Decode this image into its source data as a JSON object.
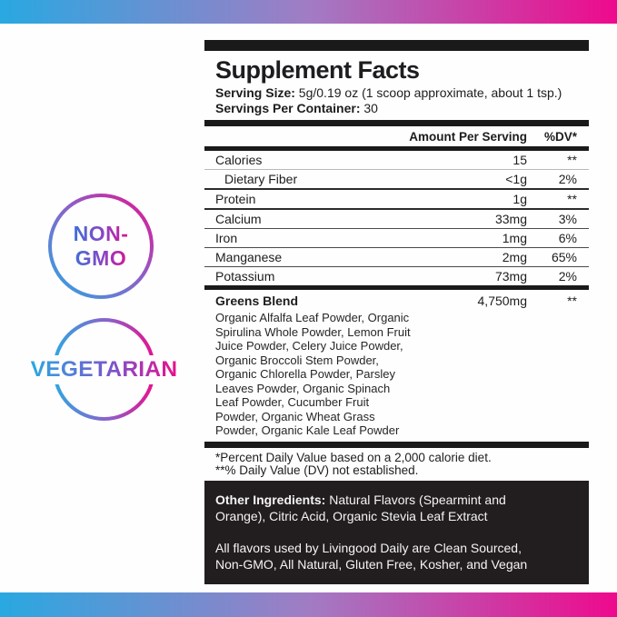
{
  "colors": {
    "gradient_blue": "#29A8E1",
    "gradient_purple": "#A17CC4",
    "gradient_magenta": "#EE0A8C",
    "bar_black": "#1a1a1a",
    "box_background": "#221e1f"
  },
  "badges": {
    "non_gmo": {
      "line1": "NON-",
      "line2": "GMO"
    },
    "vegetarian": "VEGETARIAN"
  },
  "panel": {
    "title": "Supplement Facts",
    "serving_size_label": "Serving Size:",
    "serving_size_value": " 5g/0.19 oz (1 scoop approximate, about 1 tsp.)",
    "servings_label": "Servings Per Container:",
    "servings_value": " 30",
    "header": {
      "amount": "Amount Per Serving",
      "dv": "%DV*"
    },
    "rows": [
      {
        "name": "Calories",
        "amount": "15",
        "dv": "**",
        "indent": false
      },
      {
        "name": "Dietary Fiber",
        "amount": "<1g",
        "dv": "2%",
        "indent": true
      },
      {
        "name": "Protein",
        "amount": "1g",
        "dv": "**",
        "indent": false
      },
      {
        "name": "Calcium",
        "amount": "33mg",
        "dv": "3%",
        "indent": false
      },
      {
        "name": "Iron",
        "amount": "1mg",
        "dv": "6%",
        "indent": false
      },
      {
        "name": "Manganese",
        "amount": "2mg",
        "dv": "65%",
        "indent": false
      },
      {
        "name": "Potassium",
        "amount": "73mg",
        "dv": "2%",
        "indent": false
      }
    ],
    "greens": {
      "name": "Greens Blend",
      "amount": "4,750mg",
      "dv": "**",
      "description": "Organic Alfalfa Leaf Powder, Organic\nSpirulina Whole Powder, Lemon Fruit\nJuice Powder, Celery Juice Powder,\nOrganic Broccoli Stem Powder,\nOrganic Chlorella Powder, Parsley\nLeaves Powder, Organic Spinach\nLeaf Powder, Cucumber Fruit\nPowder, Organic Wheat Grass\nPowder, Organic Kale Leaf Powder"
    },
    "footnotes": {
      "line1": "*Percent Daily Value based on a 2,000 calorie diet.",
      "line2": "**% Daily Value (DV) not established."
    },
    "other_ingredients": {
      "label": "Other Ingredients:",
      "text": " Natural Flavors (Spearmint and\nOrange), Citric Acid, Organic Stevia Leaf Extract",
      "note": "All flavors used by Livingood Daily are Clean Sourced,\nNon-GMO, All Natural, Gluten Free, Kosher, and Vegan"
    }
  }
}
